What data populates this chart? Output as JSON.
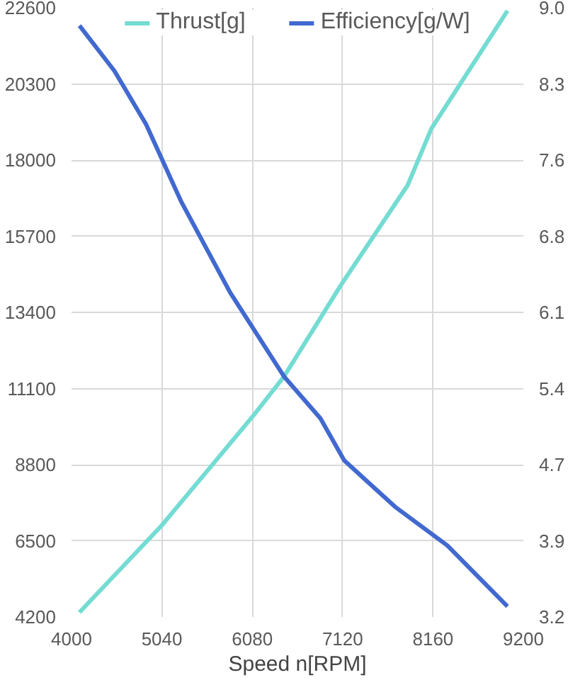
{
  "chart_data": {
    "type": "line",
    "xlabel": "Speed n[RPM]",
    "xlim": [
      4000,
      9200
    ],
    "xticks": [
      4000,
      5040,
      6080,
      7120,
      8160,
      9200
    ],
    "ylim": [
      4200,
      22600
    ],
    "yticks": [
      4200,
      6500,
      8800,
      11100,
      13400,
      15700,
      18000,
      20300,
      22600
    ],
    "y2lim": [
      3.2,
      9.0
    ],
    "y2ticks": [
      {
        "value": 3.2,
        "label": "3.2"
      },
      {
        "value": 3.925,
        "label": "3.9"
      },
      {
        "value": 4.65,
        "label": "4.7"
      },
      {
        "value": 5.375,
        "label": "5.4"
      },
      {
        "value": 6.1,
        "label": "6.1"
      },
      {
        "value": 6.825,
        "label": "6.8"
      },
      {
        "value": 7.55,
        "label": "7.6"
      },
      {
        "value": 8.275,
        "label": "8.3"
      },
      {
        "value": 9.0,
        "label": "9.0"
      }
    ],
    "grid": true,
    "legend": "top",
    "marker": "none",
    "line_style": "solid",
    "series": [
      {
        "name": "Thrust[g]",
        "color": "#74dcd2",
        "x": [
          4091,
          5040,
          6098,
          6445,
          7102,
          7868,
          8141,
          9017
        ],
        "values": [
          4340,
          6970,
          10300,
          11460,
          14230,
          17240,
          18950,
          22510
        ]
      },
      {
        "name": "Efficiency[g/W]",
        "color": "#4169cf",
        "axis": "y2",
        "x": [
          4091,
          4493,
          4858,
          5259,
          5825,
          6445,
          6865,
          7138,
          7722,
          8325,
          9017
        ],
        "values": [
          8.83,
          8.4,
          7.89,
          7.16,
          6.29,
          5.49,
          5.09,
          4.69,
          4.25,
          3.88,
          3.3
        ]
      }
    ]
  }
}
